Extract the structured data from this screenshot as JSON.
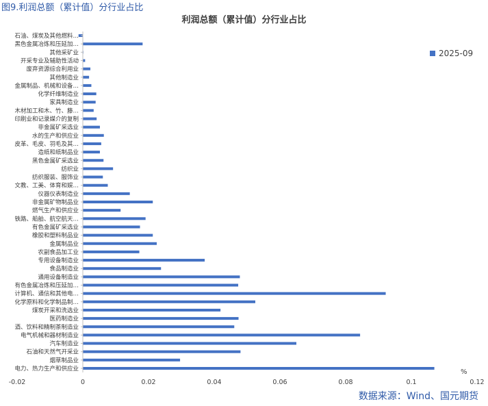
{
  "figure_label": "图9.利润总额（累计值）分行业占比",
  "source_note": "数据来源：Wind、国元期货",
  "colors": {
    "bar": "#4472c4",
    "axis": "#bfbfbf",
    "text": "#404040",
    "label_blue": "#2f5aa8"
  },
  "chart_data": {
    "type": "bar",
    "orientation": "horizontal",
    "title": "利润总额（累计值）分行业占比",
    "unit": "%",
    "legend": {
      "position": "top-right",
      "entries": [
        "2025-09"
      ]
    },
    "xlim": [
      -0.02,
      0.12
    ],
    "xticks": [
      "-0.02",
      "0",
      "0.02",
      "0.04",
      "0.06",
      "0.08",
      "0.1",
      "0.12"
    ],
    "grid": false,
    "categories": [
      "石油、煤炭及其他燃料…",
      "黑色金属冶炼和压延加…",
      "其他采矿业",
      "开采专业及辅助性活动",
      "废弃资源综合利用业",
      "其他制造业",
      "金属制品、机械和设备…",
      "化学纤维制造业",
      "家具制造业",
      "木材加工和木、竹、藤…",
      "印刷业和记录媒介的复制",
      "非金属矿采选业",
      "水的生产和供应业",
      "皮革、毛皮、羽毛及其…",
      "造纸和纸制品业",
      "黑色金属矿采选业",
      "纺织业",
      "纺织服装、服饰业",
      "文教、工美、体育和娱…",
      "仪器仪表制造业",
      "非金属矿物制品业",
      "燃气生产和供应业",
      "铁路、船舶、航空航天…",
      "有色金属矿采选业",
      "橡胶和塑料制品业",
      "金属制品业",
      "农副食品加工业",
      "专用设备制造业",
      "食品制造业",
      "通用设备制造业",
      "有色金属冶炼和压延加…",
      "计算机、通信和其他电…",
      "化学原料和化学制品制…",
      "煤炭开采和洗选业",
      "医药制造业",
      "酒、饮料和精制茶制造业",
      "电气机械和器材制造业",
      "汽车制造业",
      "石油和天然气开采业",
      "烟草制品业",
      "电力、热力生产和供应业"
    ],
    "series": [
      {
        "name": "2025-09",
        "values": [
          -0.0013,
          0.0182,
          0.0001,
          0.0007,
          0.0023,
          0.0019,
          0.0026,
          0.0041,
          0.0039,
          0.0033,
          0.0042,
          0.0052,
          0.0064,
          0.0056,
          0.0052,
          0.0063,
          0.0092,
          0.0061,
          0.0076,
          0.0143,
          0.0213,
          0.0115,
          0.0191,
          0.0174,
          0.0213,
          0.0225,
          0.0172,
          0.0371,
          0.0238,
          0.0478,
          0.0473,
          0.0922,
          0.0525,
          0.0419,
          0.0474,
          0.0461,
          0.0844,
          0.065,
          0.048,
          0.0296,
          0.107
        ]
      }
    ]
  }
}
